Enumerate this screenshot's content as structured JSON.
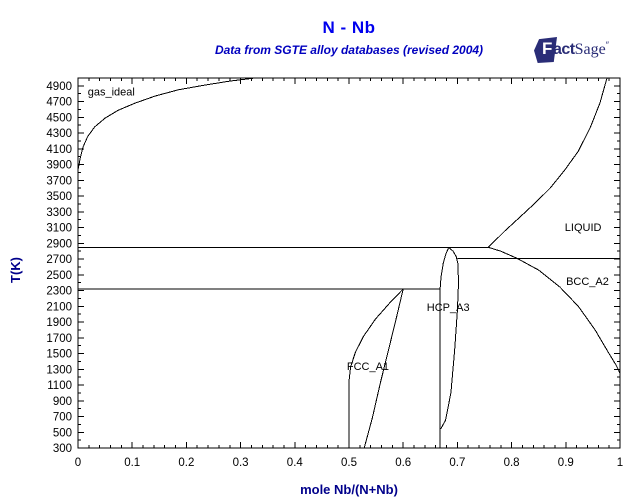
{
  "header": {
    "title": "N - Nb",
    "subtitle": "Data from SGTE alloy databases (revised 2004)",
    "logo": {
      "f": "F",
      "act": "act",
      "sage": "Sage",
      "mark": "″"
    }
  },
  "colors": {
    "title_blue": "#0000ee",
    "subtitle_blue": "#0000bf",
    "axis_label_navy": "#00008b",
    "logo_navy": "#2a2d77",
    "line_black": "#000000",
    "background": "#ffffff"
  },
  "chart_data": {
    "type": "line",
    "title": "N - Nb",
    "subtitle": "Data from SGTE alloy databases (revised 2004)",
    "xlabel": "mole Nb/(N+Nb)",
    "ylabel": "T(K)",
    "xlim": [
      0,
      1
    ],
    "ylim": [
      300,
      5000
    ],
    "grid": false,
    "x_major_ticks": [
      0,
      0.1,
      0.2,
      0.3,
      0.4,
      0.5,
      0.6,
      0.7,
      0.8,
      0.9,
      1
    ],
    "x_tick_labels": [
      "0",
      "0.1",
      "0.2",
      "0.3",
      "0.4",
      "0.5",
      "0.6",
      "0.7",
      "0.8",
      "0.9",
      "1"
    ],
    "x_minor_step": 0.02,
    "y_major_ticks": [
      300,
      500,
      700,
      900,
      1100,
      1300,
      1500,
      1700,
      1900,
      2100,
      2300,
      2500,
      2700,
      2900,
      3100,
      3300,
      3500,
      3700,
      3900,
      4100,
      4300,
      4500,
      4700,
      4900
    ],
    "y_tick_labels": [
      "300",
      "500",
      "700",
      "900",
      "1100",
      "1300",
      "1500",
      "1700",
      "1900",
      "2100",
      "2300",
      "2500",
      "2700",
      "2900",
      "3100",
      "3300",
      "3500",
      "3700",
      "3900",
      "4100",
      "4300",
      "4500",
      "4700",
      "4900"
    ],
    "y_minor_step": 100,
    "phase_labels": [
      {
        "text": "gas_ideal",
        "x": 0.018,
        "T": 4830,
        "anchor": "start"
      },
      {
        "text": "LIQUID",
        "x": 0.932,
        "T": 3110,
        "anchor": "middle"
      },
      {
        "text": "BCC_A2",
        "x": 0.94,
        "T": 2420,
        "anchor": "middle"
      },
      {
        "text": "HCP_A3",
        "x": 0.683,
        "T": 2090,
        "anchor": "middle"
      },
      {
        "text": "FCC_A1",
        "x": 0.535,
        "T": 1340,
        "anchor": "middle"
      }
    ],
    "series": [
      {
        "name": "gas_liquid_boundary",
        "points": [
          [
            0,
            3830
          ],
          [
            0.004,
            3980
          ],
          [
            0.009,
            4120
          ],
          [
            0.018,
            4260
          ],
          [
            0.031,
            4380
          ],
          [
            0.05,
            4490
          ],
          [
            0.074,
            4590
          ],
          [
            0.105,
            4680
          ],
          [
            0.142,
            4770
          ],
          [
            0.185,
            4850
          ],
          [
            0.234,
            4910
          ],
          [
            0.28,
            4960
          ],
          [
            0.327,
            5000
          ]
        ]
      },
      {
        "name": "isotherm_2850K",
        "points": [
          [
            0,
            2850
          ],
          [
            0.757,
            2850
          ]
        ]
      },
      {
        "name": "liquidus_nb_rich",
        "points": [
          [
            0.757,
            2850
          ],
          [
            0.788,
            3060
          ],
          [
            0.815,
            3230
          ],
          [
            0.843,
            3410
          ],
          [
            0.871,
            3600
          ],
          [
            0.898,
            3830
          ],
          [
            0.923,
            4070
          ],
          [
            0.945,
            4370
          ],
          [
            0.963,
            4680
          ],
          [
            0.976,
            5000
          ]
        ]
      },
      {
        "name": "bcc_a2_liquid_boundary",
        "points": [
          [
            0.757,
            2850
          ],
          [
            0.78,
            2800
          ],
          [
            0.81,
            2710
          ],
          [
            0.85,
            2560
          ],
          [
            0.889,
            2345
          ],
          [
            0.923,
            2100
          ],
          [
            0.954,
            1800
          ],
          [
            0.978,
            1520
          ],
          [
            0.993,
            1350
          ],
          [
            1,
            1250
          ]
        ]
      },
      {
        "name": "isotherm_2710K",
        "points": [
          [
            0.7,
            2710
          ],
          [
            1,
            2710
          ]
        ]
      },
      {
        "name": "isotherm_2320K",
        "points": [
          [
            0,
            2320
          ],
          [
            0.668,
            2320
          ]
        ]
      },
      {
        "name": "hcp_a3_left_boundary",
        "points": [
          [
            0.668,
            300
          ],
          [
            0.668,
            2320
          ],
          [
            0.67,
            2480
          ],
          [
            0.674,
            2650
          ],
          [
            0.679,
            2770
          ],
          [
            0.684,
            2845
          ]
        ]
      },
      {
        "name": "hcp_a3_right_boundary",
        "points": [
          [
            0.684,
            2845
          ],
          [
            0.692,
            2800
          ],
          [
            0.698,
            2730
          ],
          [
            0.701,
            2640
          ],
          [
            0.702,
            2400
          ],
          [
            0.7,
            2050
          ],
          [
            0.695,
            1550
          ],
          [
            0.688,
            1000
          ],
          [
            0.678,
            650
          ],
          [
            0.669,
            540
          ]
        ]
      },
      {
        "name": "fcc_a1_left_boundary",
        "points": [
          [
            0.5,
            300
          ],
          [
            0.5,
            1150
          ],
          [
            0.503,
            1330
          ],
          [
            0.512,
            1520
          ],
          [
            0.527,
            1720
          ],
          [
            0.549,
            1940
          ],
          [
            0.575,
            2140
          ],
          [
            0.6,
            2320
          ]
        ]
      },
      {
        "name": "fcc_a1_right_boundary",
        "points": [
          [
            0.6,
            2320
          ],
          [
            0.588,
            1970
          ],
          [
            0.573,
            1550
          ],
          [
            0.558,
            1130
          ],
          [
            0.543,
            680
          ],
          [
            0.528,
            300
          ]
        ]
      }
    ]
  }
}
